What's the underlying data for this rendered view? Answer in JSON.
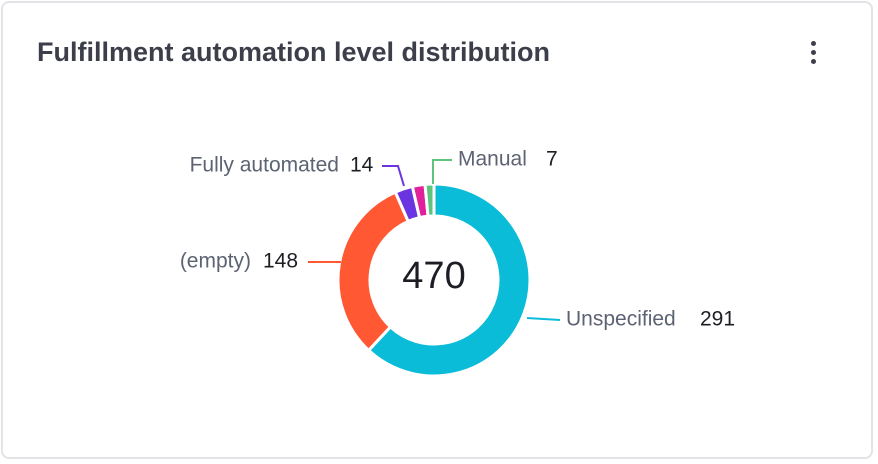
{
  "title": "Fulfillment automation level distribution",
  "chart_data": {
    "type": "donut",
    "categories": [
      "Unspecified",
      "(empty)",
      "Fully automated",
      null,
      "Manual"
    ],
    "values": [
      291,
      148,
      14,
      10,
      7
    ],
    "colors": [
      "#0bbcd9",
      "#ff5833",
      "#6a35e0",
      "#e0219a",
      "#5ec47c"
    ],
    "total": 470
  }
}
